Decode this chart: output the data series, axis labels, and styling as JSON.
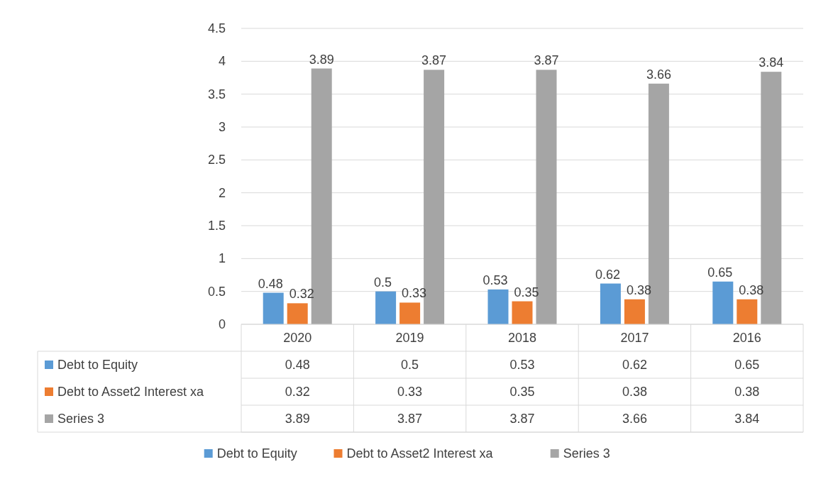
{
  "chart_data": {
    "type": "bar",
    "categories": [
      "2020",
      "2019",
      "2018",
      "2017",
      "2016"
    ],
    "series": [
      {
        "name": "Debt to Equity",
        "color": "#5b9bd5",
        "values": [
          0.48,
          0.5,
          0.53,
          0.62,
          0.65
        ],
        "value_labels": [
          "0.48",
          "0.5",
          "0.53",
          "0.62",
          "0.65"
        ]
      },
      {
        "name": "Debt to Asset2 Interest xa",
        "color": "#ed7d31",
        "values": [
          0.32,
          0.33,
          0.35,
          0.38,
          0.38
        ],
        "value_labels": [
          "0.32",
          "0.33",
          "0.35",
          "0.38",
          "0.38"
        ]
      },
      {
        "name": "Series 3",
        "color": "#a5a5a5",
        "values": [
          3.89,
          3.87,
          3.87,
          3.66,
          3.84
        ],
        "value_labels": [
          "3.89",
          "3.87",
          "3.87",
          "3.66",
          "3.84"
        ]
      }
    ],
    "annotations": [
      "0.48",
      "0.5",
      "0.53",
      "0.62",
      "0.65",
      "0.32",
      "0.33",
      "0.35",
      "0.38",
      "0.38",
      "3.89",
      "3.87",
      "3.87",
      "3.66",
      "3.84"
    ],
    "ylim": [
      0,
      4.5
    ],
    "yticks": [
      0,
      0.5,
      1,
      1.5,
      2,
      2.5,
      3,
      3.5,
      4,
      4.5
    ],
    "grid": "y",
    "legend": "bottom",
    "data_labels": true
  }
}
